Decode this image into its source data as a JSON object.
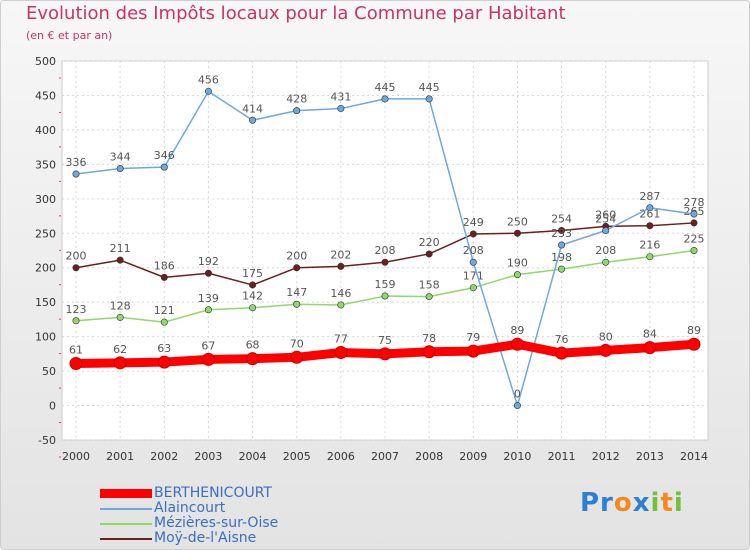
{
  "header": {
    "title": "Evolution des Impôts locaux pour la Commune par Habitant",
    "subtitle": "(en € et par an)"
  },
  "logo": {
    "text": "Proxiti"
  },
  "chart_data": {
    "type": "line",
    "x": [
      2000,
      2001,
      2002,
      2003,
      2004,
      2005,
      2006,
      2007,
      2008,
      2009,
      2010,
      2011,
      2012,
      2013,
      2014
    ],
    "xticks": [
      "2000",
      "2001",
      "2002",
      "2003",
      "2004",
      "2005",
      "2006",
      "2007",
      "2008",
      "2009",
      "2010",
      "2011",
      "2012",
      "2013",
      "2014"
    ],
    "ylim": [
      -50,
      500
    ],
    "yticks": [
      "-50",
      "0",
      "50",
      "100",
      "150",
      "200",
      "250",
      "300",
      "350",
      "400",
      "450",
      "500"
    ],
    "grid": true,
    "legend_position": "bottom-left",
    "series": [
      {
        "name": "Moÿ-de-l'Aisne",
        "color": "#6b1f1f",
        "values": [
          200,
          211,
          186,
          192,
          175,
          200,
          202,
          208,
          220,
          249,
          250,
          254,
          260,
          261,
          265
        ],
        "labels": [
          "200",
          "211",
          "186",
          "192",
          "175",
          "200",
          "202",
          "208",
          "220",
          "249",
          "250",
          "254",
          "260",
          "261",
          "265"
        ]
      },
      {
        "name": "Mézières-sur-Oise",
        "color": "#8fd86a",
        "values": [
          123,
          128,
          121,
          139,
          142,
          147,
          146,
          159,
          158,
          171,
          190,
          198,
          208,
          216,
          225
        ],
        "labels": [
          "123",
          "128",
          "121",
          "139",
          "142",
          "147",
          "146",
          "159",
          "158",
          "171",
          "190",
          "198",
          "208",
          "216",
          "225"
        ]
      },
      {
        "name": "Alaincourt",
        "color": "#6fa8dc",
        "values": [
          336,
          344,
          346,
          456,
          414,
          428,
          431,
          445,
          445,
          208,
          0,
          233,
          254,
          287,
          278
        ],
        "labels": [
          "336",
          "344",
          "346",
          "456",
          "414",
          "428",
          "431",
          "445",
          "445",
          "208",
          "0",
          "233",
          "254",
          "287",
          "278"
        ]
      },
      {
        "name": "BERTHENICOURT",
        "color": "#ff0000",
        "values": [
          61,
          62,
          63,
          67,
          68,
          70,
          77,
          75,
          78,
          79,
          89,
          76,
          80,
          84,
          89
        ],
        "labels": [
          "61",
          "62",
          "63",
          "67",
          "68",
          "70",
          "77",
          "75",
          "78",
          "79",
          "89",
          "76",
          "80",
          "84",
          "89"
        ]
      }
    ],
    "legend_order": [
      "BERTHENICOURT",
      "Alaincourt",
      "Mézières-sur-Oise",
      "Moÿ-de-l'Aisne"
    ]
  }
}
